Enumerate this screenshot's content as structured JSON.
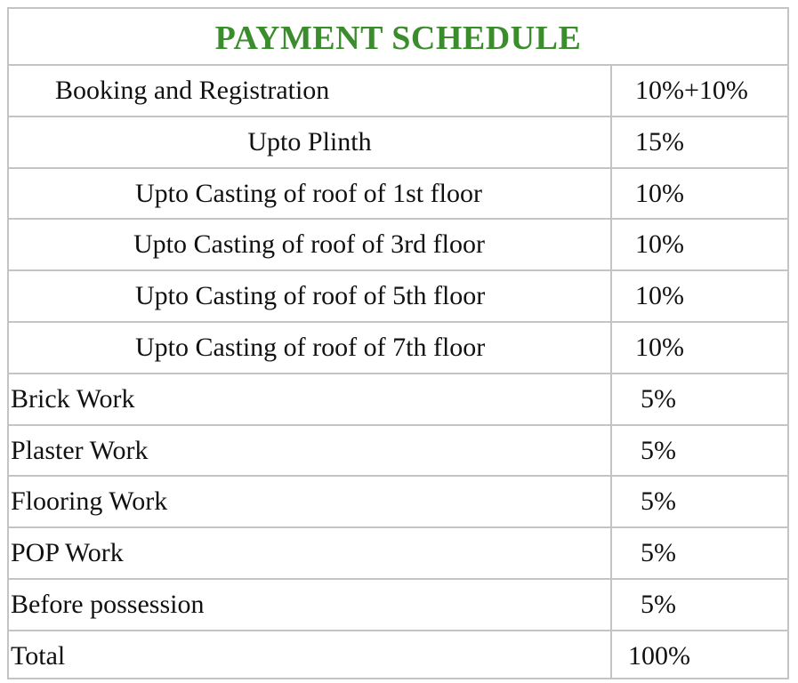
{
  "table": {
    "title": "PAYMENT SCHEDULE",
    "rows": [
      [
        "Booking and Registration",
        "10%+10%"
      ],
      [
        "Upto Plinth",
        "15%"
      ],
      [
        "Upto Casting of roof of 1st floor",
        "10%"
      ],
      [
        "Upto Casting of roof of 3rd floor",
        "10%"
      ],
      [
        "Upto Casting of roof of 5th floor",
        "10%"
      ],
      [
        "Upto Casting of roof of 7th floor",
        "10%"
      ],
      [
        "Brick Work",
        "5%"
      ],
      [
        "Plaster Work",
        "5%"
      ],
      [
        "Flooring Work",
        "5%"
      ],
      [
        "POP Work",
        "5%"
      ],
      [
        "Before possession",
        "5%"
      ],
      [
        "Total",
        "100%"
      ]
    ]
  }
}
